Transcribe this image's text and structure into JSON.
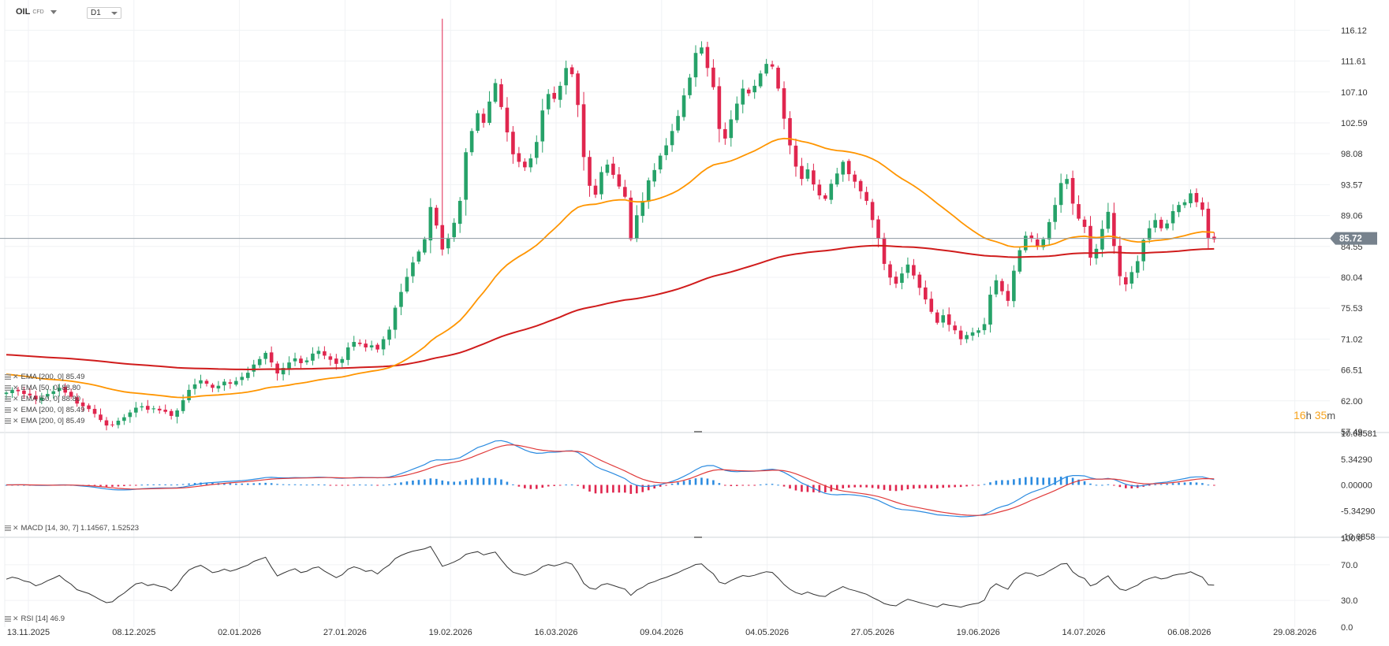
{
  "header": {
    "symbol": "OIL",
    "symbol_tag": "CFD",
    "timeframe": "D1"
  },
  "countdown": {
    "hours": "16",
    "hours_unit": "h",
    "minutes": "35",
    "minutes_unit": "m"
  },
  "colors": {
    "up": "#26a269",
    "down": "#e0264e",
    "ema50": "#ff9500",
    "ema200": "#d01c1c",
    "macd": "#2b8be0",
    "signal": "#e03a3a",
    "price_badge": "#77828d",
    "rsi": "#333333"
  },
  "legends": {
    "main": [
      "EMA [200, 0] 85.49",
      "EMA [50, 0] 88.80",
      "EMA [50, 0] 88.80",
      "EMA [200, 0] 85.49",
      "EMA [200, 0] 85.49"
    ],
    "macd": "MACD [14, 30, 7] 1.14567, 1.52523",
    "rsi": "RSI [14] 46.9"
  },
  "chart_data": [
    {
      "type": "candlestick",
      "name": "OIL CFD D1",
      "x_ticks": [
        "13.11.2025",
        "08.12.2025",
        "02.01.2026",
        "27.01.2026",
        "19.02.2026",
        "16.03.2026",
        "09.04.2026",
        "04.05.2026",
        "27.05.2026",
        "19.06.2026",
        "14.07.2026",
        "06.08.2026",
        "29.08.2026"
      ],
      "y_ticks": [
        116.12,
        111.61,
        107.1,
        102.59,
        98.08,
        93.57,
        89.06,
        84.55,
        80.04,
        75.53,
        71.02,
        66.51,
        62.0,
        57.49
      ],
      "ylim": [
        57.49,
        118.0
      ],
      "last_price": 85.72,
      "closes": [
        63.2,
        63.6,
        63.4,
        63.0,
        62.8,
        62.2,
        62.5,
        63.0,
        63.4,
        63.9,
        63.2,
        62.6,
        61.6,
        61.2,
        60.8,
        60.1,
        59.2,
        58.4,
        58.5,
        59.1,
        59.6,
        60.3,
        61.0,
        61.2,
        60.7,
        60.9,
        60.6,
        60.4,
        59.8,
        60.6,
        62.1,
        63.6,
        64.4,
        65.0,
        64.5,
        63.9,
        64.2,
        64.8,
        64.5,
        64.9,
        65.5,
        66.1,
        67.3,
        68.1,
        69.0,
        67.6,
        66.0,
        66.8,
        67.6,
        68.2,
        67.5,
        67.9,
        68.9,
        69.3,
        68.6,
        68.0,
        67.4,
        68.1,
        69.8,
        70.6,
        70.3,
        69.8,
        70.1,
        69.5,
        71.0,
        72.4,
        75.6,
        77.9,
        80.1,
        82.2,
        83.8,
        85.6,
        90.3,
        87.6,
        84.1,
        85.8,
        88.0,
        91.2,
        98.3,
        101.4,
        104.0,
        102.6,
        105.7,
        108.4,
        104.9,
        101.2,
        98.0,
        96.9,
        96.1,
        97.4,
        99.8,
        104.4,
        106.8,
        106.1,
        108.0,
        110.6,
        109.7,
        105.2,
        97.6,
        93.4,
        92.1,
        95.4,
        96.5,
        95.0,
        93.3,
        91.8,
        85.6,
        89.1,
        91.2,
        94.2,
        95.7,
        97.8,
        99.3,
        101.4,
        103.6,
        106.6,
        109.2,
        112.8,
        113.6,
        110.6,
        107.8,
        101.7,
        100.3,
        103.1,
        105.4,
        107.6,
        106.9,
        108.0,
        109.8,
        111.2,
        110.8,
        107.6,
        103.2,
        99.3,
        96.2,
        94.4,
        95.8,
        93.6,
        92.0,
        91.5,
        93.7,
        95.2,
        96.9,
        95.1,
        94.0,
        92.6,
        91.2,
        88.4,
        85.7,
        82.0,
        80.0,
        79.1,
        80.6,
        81.9,
        80.3,
        78.5,
        76.8,
        75.0,
        73.4,
        74.5,
        73.1,
        72.3,
        71.0,
        71.6,
        72.0,
        72.3,
        73.2,
        77.5,
        79.6,
        78.0,
        76.6,
        81.0,
        84.0,
        86.1,
        85.7,
        84.5,
        85.6,
        88.1,
        90.6,
        93.8,
        94.4,
        90.8,
        88.6,
        87.4,
        82.9,
        84.2,
        87.1,
        89.6,
        84.6,
        80.2,
        79.0,
        80.8,
        82.4,
        85.5,
        87.2,
        88.4,
        87.2,
        87.9,
        89.7,
        90.6,
        91.0,
        92.3,
        91.0,
        89.9,
        85.8,
        85.6
      ],
      "ema50_last": 88.8,
      "ema200_last": 85.49
    },
    {
      "type": "macd",
      "name": "MACD [14, 30, 7]",
      "y_ticks": [
        10.68581,
        5.3429,
        0.0,
        -5.3429,
        -10.6858
      ],
      "y_tick_labels": [
        "10.68581",
        "5.34290",
        "0.00000",
        "-5.34290",
        "-10.6858"
      ],
      "ylim": [
        -10.6858,
        10.68581
      ],
      "macd_last": 1.14567,
      "signal_last": 1.52523
    },
    {
      "type": "line",
      "name": "RSI [14]",
      "y_ticks": [
        100.0,
        70.0,
        30.0,
        0.0
      ],
      "y_tick_labels": [
        "100.0",
        "70.0",
        "30.0",
        "0.0"
      ],
      "ylim": [
        0,
        100
      ],
      "last": 46.9
    }
  ]
}
